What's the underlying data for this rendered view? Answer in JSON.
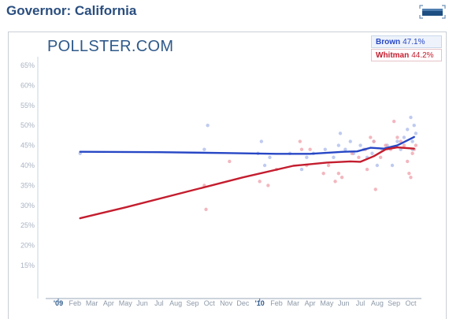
{
  "header": {
    "title": "Governor: California"
  },
  "logo": {
    "text": "POLLSTER.COM"
  },
  "legend": [
    {
      "name": "Brown",
      "value": "47.1%",
      "color": "#2747c5"
    },
    {
      "name": "Whitman",
      "value": "44.2%",
      "color": "#c41d2e"
    }
  ],
  "chart_data": {
    "type": "line",
    "title": "",
    "xlabel": "",
    "ylabel": "",
    "ylim": [
      10,
      70
    ],
    "y_ticks": [
      "15%",
      "20%",
      "25%",
      "30%",
      "35%",
      "40%",
      "45%",
      "50%",
      "55%",
      "60%",
      "65%"
    ],
    "y_tick_values": [
      15,
      20,
      25,
      30,
      35,
      40,
      45,
      50,
      55,
      60,
      65
    ],
    "x_tick_labels": [
      "'09",
      "Feb",
      "Mar",
      "Apr",
      "May",
      "Jun",
      "Jul",
      "Aug",
      "Sep",
      "Oct",
      "Nov",
      "Dec",
      "'10",
      "Feb",
      "Mar",
      "Apr",
      "May",
      "Jun",
      "Jul",
      "Aug",
      "Sep",
      "Oct"
    ],
    "x_tick_months": [
      0,
      1,
      2,
      3,
      4,
      5,
      6,
      7,
      8,
      9,
      10,
      11,
      12,
      13,
      14,
      15,
      16,
      17,
      18,
      19,
      20,
      21
    ],
    "x_range_months": [
      0,
      21.4
    ],
    "grid": false,
    "series": [
      {
        "name": "Brown",
        "color": "#2747c5",
        "trend": [
          [
            1.3,
            43.4
          ],
          [
            6,
            43.3
          ],
          [
            10,
            43.1
          ],
          [
            13,
            42.9
          ],
          [
            15,
            42.9
          ],
          [
            17,
            43.4
          ],
          [
            17.8,
            43.5
          ],
          [
            18.6,
            44.4
          ],
          [
            19.4,
            44.2
          ],
          [
            20.2,
            45.0
          ],
          [
            21.2,
            47.1
          ]
        ],
        "polls": [
          [
            1.3,
            43
          ],
          [
            8.7,
            44
          ],
          [
            8.9,
            50
          ],
          [
            11.9,
            43
          ],
          [
            12.1,
            46
          ],
          [
            12.3,
            40
          ],
          [
            12.6,
            42
          ],
          [
            13.8,
            43
          ],
          [
            14.5,
            39
          ],
          [
            14.8,
            42
          ],
          [
            15.2,
            43
          ],
          [
            15.9,
            44
          ],
          [
            16.4,
            42
          ],
          [
            16.7,
            45
          ],
          [
            16.8,
            48
          ],
          [
            17.1,
            44
          ],
          [
            17.4,
            46
          ],
          [
            17.6,
            43
          ],
          [
            18.0,
            45
          ],
          [
            18.2,
            44
          ],
          [
            18.4,
            42
          ],
          [
            18.7,
            43
          ],
          [
            18.8,
            46
          ],
          [
            19.0,
            40
          ],
          [
            19.3,
            44
          ],
          [
            19.6,
            45
          ],
          [
            19.9,
            40
          ],
          [
            20.2,
            46
          ],
          [
            20.4,
            44
          ],
          [
            20.6,
            47
          ],
          [
            20.8,
            49
          ],
          [
            21.0,
            52
          ],
          [
            21.1,
            46
          ],
          [
            21.2,
            50
          ],
          [
            21.3,
            48
          ],
          [
            21.1,
            44
          ]
        ]
      },
      {
        "name": "Whitman",
        "color": "#c41d2e",
        "trend": [
          [
            1.3,
            26.8
          ],
          [
            4,
            29.5
          ],
          [
            8,
            33.8
          ],
          [
            11,
            37.0
          ],
          [
            14,
            39.9
          ],
          [
            16,
            40.7
          ],
          [
            17.4,
            41.0
          ],
          [
            18,
            40.9
          ],
          [
            18.8,
            42.3
          ],
          [
            19.5,
            44.0
          ],
          [
            20.2,
            44.5
          ],
          [
            21.2,
            44.2
          ]
        ],
        "polls": [
          [
            8.7,
            35
          ],
          [
            8.8,
            29
          ],
          [
            10.2,
            41
          ],
          [
            12.0,
            36
          ],
          [
            12.5,
            35
          ],
          [
            13.0,
            39
          ],
          [
            14.4,
            46
          ],
          [
            14.5,
            44
          ],
          [
            14.8,
            40
          ],
          [
            15.0,
            44
          ],
          [
            15.8,
            38
          ],
          [
            16.1,
            40
          ],
          [
            16.5,
            36
          ],
          [
            16.7,
            38
          ],
          [
            16.9,
            37
          ],
          [
            17.5,
            43
          ],
          [
            17.9,
            42
          ],
          [
            18.3,
            44
          ],
          [
            18.4,
            39
          ],
          [
            18.6,
            47
          ],
          [
            18.8,
            46
          ],
          [
            18.9,
            34
          ],
          [
            19.2,
            42
          ],
          [
            19.5,
            45
          ],
          [
            19.8,
            44
          ],
          [
            20.0,
            51
          ],
          [
            20.2,
            47
          ],
          [
            20.4,
            46
          ],
          [
            20.6,
            45
          ],
          [
            20.8,
            41
          ],
          [
            20.9,
            38
          ],
          [
            21.0,
            37
          ],
          [
            21.1,
            43
          ],
          [
            21.2,
            44
          ],
          [
            21.3,
            45
          ]
        ]
      }
    ]
  }
}
